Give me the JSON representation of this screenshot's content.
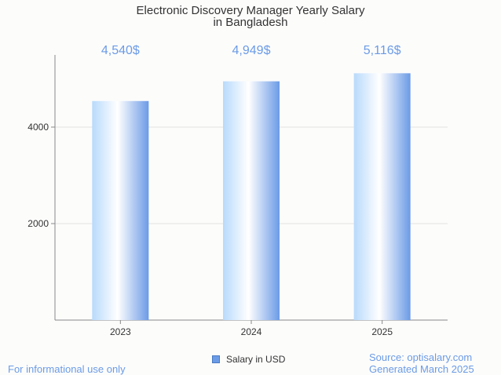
{
  "chart_data": {
    "type": "bar",
    "title": "Electronic Discovery Manager Yearly Salary",
    "subtitle": "in Bangladesh",
    "categories": [
      "2023",
      "2024",
      "2025"
    ],
    "series": [
      {
        "name": "Salary in USD",
        "values": [
          4540,
          4949,
          5116
        ]
      }
    ],
    "data_labels": [
      "4,540$",
      "4,949$",
      "5,116$"
    ],
    "yticks": [
      2000,
      4000
    ],
    "ylim": [
      0,
      5500
    ],
    "xlabel": "",
    "ylabel": "",
    "grid": true,
    "legend_position": "bottom",
    "colors": {
      "bar_light": "#ffffff",
      "bar_mid": "#c9e3fb",
      "bar_dark": "#6b9be6",
      "label": "#6b9be6"
    }
  },
  "footer": {
    "left": "For informational use only",
    "source": "Source: optisalary.com",
    "generated": "Generated March 2025"
  }
}
